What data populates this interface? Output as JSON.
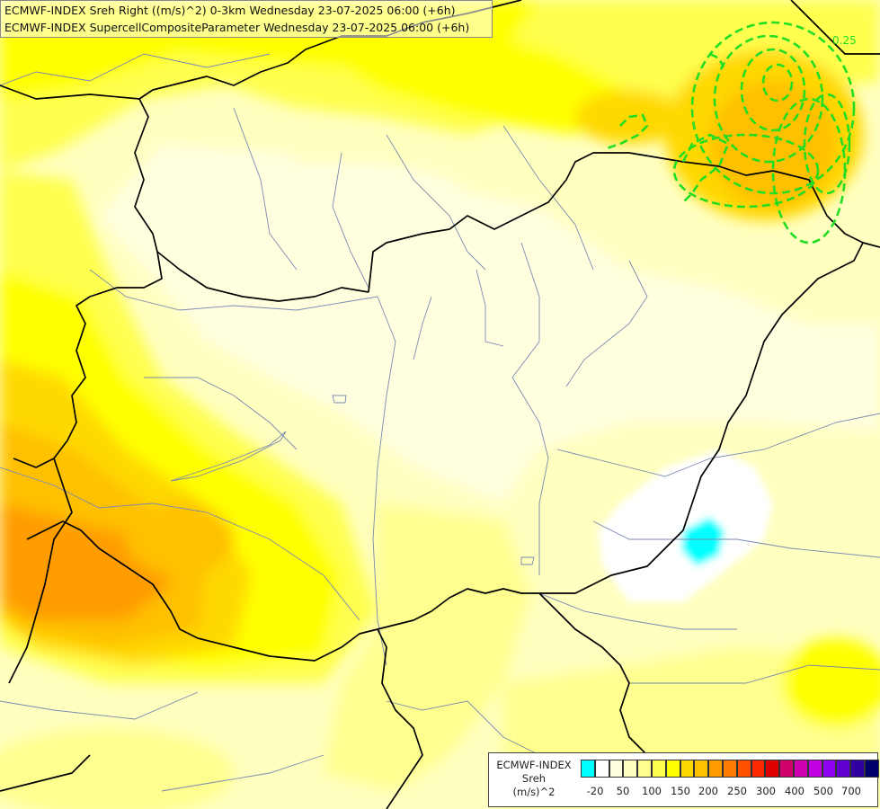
{
  "header": {
    "line1": "ECMWF-INDEX Sreh Right ((m/s)^2) 0-3km Wednesday 23-07-2025 06:00 (+6h)",
    "line2": "ECMWF-INDEX SupercellCompositeParameter Wednesday 23-07-2025 06:00 (+6h)"
  },
  "legend": {
    "title1": "ECMWF-INDEX",
    "title2": "Sreh",
    "title3": "(m/s)^2",
    "colors": [
      "#00ffff",
      "#ffffff",
      "#ffffe0",
      "#ffffc0",
      "#ffff90",
      "#ffff50",
      "#ffff00",
      "#ffd800",
      "#ffc000",
      "#ff9c00",
      "#ff7c00",
      "#ff5000",
      "#ff2800",
      "#e00000",
      "#d0006a",
      "#d000b0",
      "#c000e0",
      "#9000f0",
      "#6000d0",
      "#3000a0",
      "#00006a"
    ],
    "ticks": [
      "-20",
      "50",
      "100",
      "150",
      "200",
      "250",
      "300",
      "400",
      "500",
      "700"
    ]
  },
  "contour_label": "0.25",
  "colors": {
    "contour": "#22dd22",
    "border": "#000000",
    "river": "#7a88b0"
  }
}
